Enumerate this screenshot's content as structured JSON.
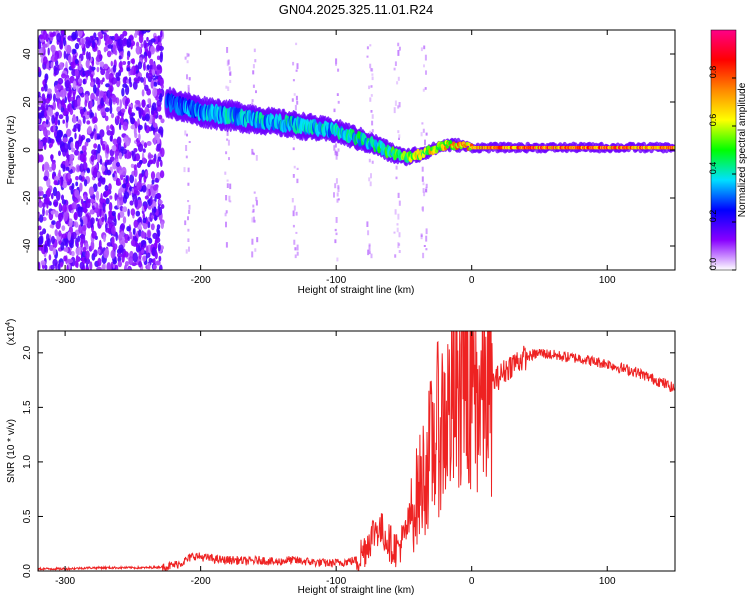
{
  "title": "GN04.2025.325.11.01.R24",
  "colorbar": {
    "label": "Normalized spectral amplitude",
    "ticks": [
      "0.0",
      "0.2",
      "0.4",
      "0.6",
      "0.8"
    ],
    "tick_values": [
      0.0,
      0.2,
      0.4,
      0.6,
      0.8
    ],
    "range": [
      0,
      1
    ],
    "gradient": [
      "#ffffff",
      "#8800ff",
      "#0000ff",
      "#00e0ff",
      "#00ff00",
      "#ffff00",
      "#ff8800",
      "#ff0000",
      "#ff0088"
    ]
  },
  "chart_data": [
    {
      "type": "heatmap",
      "title": "GN04.2025.325.11.01.R24",
      "xlabel": "Height of straight line (km)",
      "ylabel": "Frequency (Hz)",
      "xlim": [
        -320,
        150
      ],
      "ylim": [
        -50,
        50
      ],
      "x_ticks": [
        -300,
        -200,
        -100,
        0,
        100
      ],
      "x_tick_labels": [
        "-300",
        "-200",
        "-100",
        "0",
        "100"
      ],
      "y_ticks": [
        -40,
        -20,
        0,
        20,
        40
      ],
      "y_tick_labels": [
        "-40",
        "-20",
        "0",
        "20",
        "40"
      ],
      "ridge": {
        "x": [
          -225,
          -200,
          -175,
          -150,
          -125,
          -100,
          -85,
          -70,
          -60,
          -50,
          -40,
          -30,
          -20,
          -10,
          0,
          25,
          50,
          75,
          100,
          125,
          150
        ],
        "freq": [
          20,
          16,
          14,
          12,
          10,
          8,
          5,
          2,
          -1,
          -3,
          -2,
          0,
          2,
          2,
          1,
          1,
          1,
          1,
          1,
          1,
          1
        ],
        "amplitude": [
          0.35,
          0.4,
          0.45,
          0.45,
          0.45,
          0.45,
          0.5,
          0.5,
          0.55,
          0.6,
          0.7,
          0.75,
          0.8,
          0.85,
          0.9,
          0.95,
          0.95,
          0.95,
          0.95,
          0.95,
          0.95
        ],
        "bandwidth_hz": [
          8,
          8,
          8,
          7,
          7,
          6,
          6,
          5,
          5,
          4,
          4,
          3,
          3,
          3,
          2,
          2,
          2,
          2,
          2,
          2,
          2
        ]
      },
      "noise_region_x": [
        -320,
        -228
      ]
    },
    {
      "type": "line",
      "xlabel": "Height of straight line (km)",
      "ylabel": "SNR (10 * v/v)",
      "y_multiplier_label": "(x10",
      "y_multiplier_exponent": "4",
      "y_multiplier_suffix": ")",
      "xlim": [
        -320,
        150
      ],
      "ylim": [
        0,
        2.2
      ],
      "x_ticks": [
        -300,
        -200,
        -100,
        0,
        100
      ],
      "x_tick_labels": [
        "-300",
        "-200",
        "-100",
        "0",
        "100"
      ],
      "y_ticks": [
        0.0,
        0.5,
        1.0,
        1.5,
        2.0
      ],
      "y_tick_labels": [
        "0.0",
        "0.5",
        "1.0",
        "1.5",
        "2.0"
      ],
      "color": "#ee2222",
      "series": [
        {
          "name": "SNR",
          "x": [
            -320,
            -300,
            -280,
            -260,
            -240,
            -225,
            -215,
            -205,
            -195,
            -185,
            -175,
            -165,
            -155,
            -145,
            -135,
            -125,
            -115,
            -105,
            -95,
            -85,
            -80,
            -75,
            -70,
            -65,
            -60,
            -55,
            -50,
            -45,
            -40,
            -35,
            -30,
            -25,
            -20,
            -15,
            -10,
            -5,
            0,
            5,
            10,
            15,
            20,
            30,
            40,
            50,
            60,
            70,
            80,
            90,
            100,
            110,
            120,
            130,
            140,
            150
          ],
          "y": [
            0.02,
            0.02,
            0.03,
            0.03,
            0.03,
            0.04,
            0.07,
            0.14,
            0.12,
            0.1,
            0.1,
            0.09,
            0.1,
            0.08,
            0.1,
            0.09,
            0.08,
            0.07,
            0.08,
            0.1,
            0.18,
            0.3,
            0.4,
            0.35,
            0.25,
            0.2,
            0.3,
            0.5,
            0.7,
            0.9,
            1.1,
            1.3,
            1.4,
            1.5,
            1.55,
            1.6,
            1.7,
            1.6,
            1.65,
            1.72,
            1.78,
            1.9,
            1.96,
            2.0,
            1.98,
            1.96,
            1.95,
            1.92,
            1.9,
            1.86,
            1.83,
            1.78,
            1.73,
            1.67
          ]
        }
      ]
    }
  ]
}
